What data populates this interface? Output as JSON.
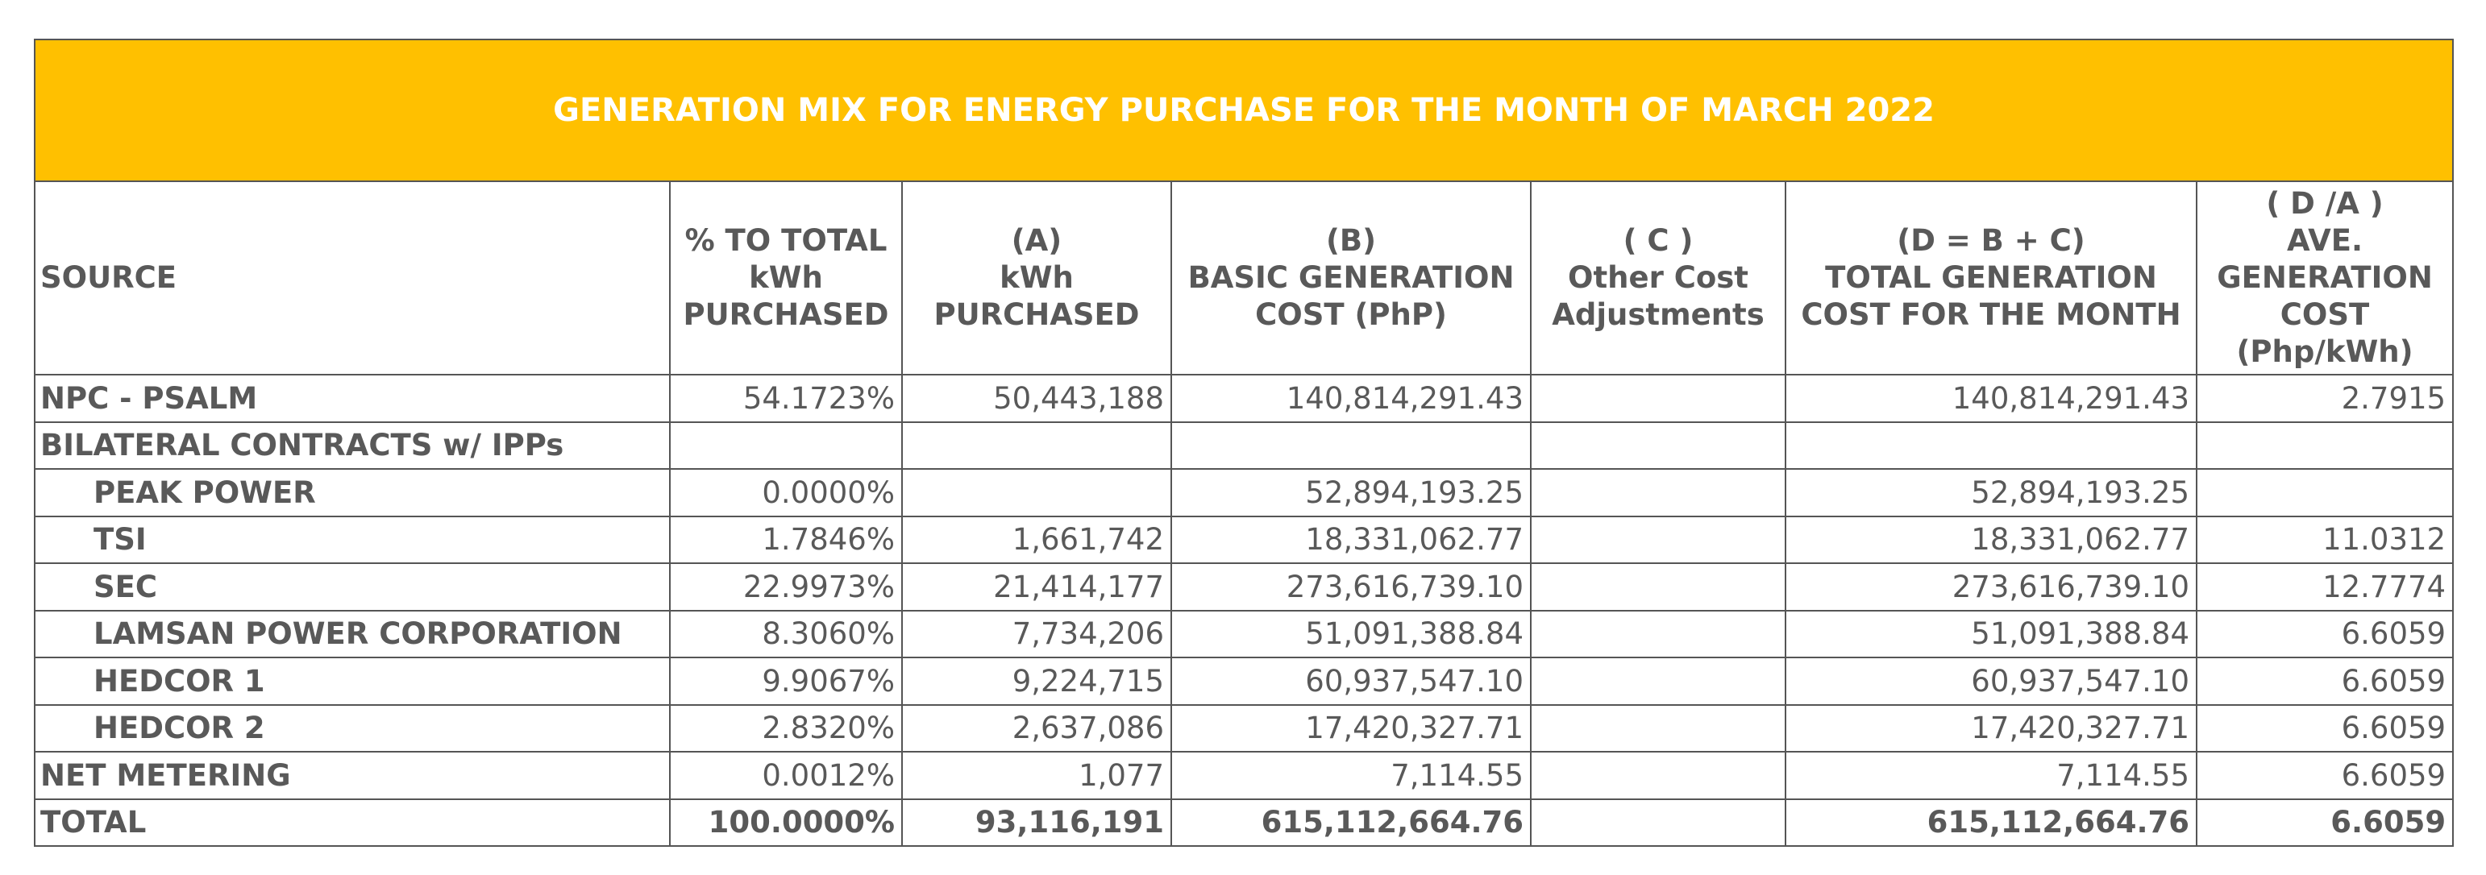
{
  "title": "GENERATION MIX FOR ENERGY PURCHASE FOR THE MONTH OF MARCH 2022",
  "headers": {
    "source": "SOURCE",
    "pct": [
      "% TO TOTAL",
      "kWh",
      "PURCHASED"
    ],
    "kwh": [
      "(A)",
      "kWh",
      "PURCHASED"
    ],
    "basic": [
      "(B)",
      "BASIC GENERATION",
      "COST (PhP)"
    ],
    "other": [
      "( C )",
      "Other Cost",
      "Adjustments"
    ],
    "total": [
      "(D = B + C)",
      "TOTAL GENERATION",
      "COST FOR THE MONTH"
    ],
    "ave": [
      "( D /A )",
      "AVE.",
      "GENERATION",
      "COST",
      "(Php/kWh)"
    ]
  },
  "rows": [
    {
      "source": "NPC - PSALM",
      "indent": false,
      "pct": "54.1723%",
      "kwh": "50,443,188",
      "basic": "140,814,291.43",
      "other": "",
      "total": "140,814,291.43",
      "ave": "2.7915"
    },
    {
      "source": "BILATERAL CONTRACTS w/ IPPs",
      "indent": false,
      "pct": "",
      "kwh": "",
      "basic": "",
      "other": "",
      "total": "",
      "ave": ""
    },
    {
      "source": "PEAK POWER",
      "indent": true,
      "pct": "0.0000%",
      "kwh": "",
      "basic": "52,894,193.25",
      "other": "",
      "total": "52,894,193.25",
      "ave": ""
    },
    {
      "source": "TSI",
      "indent": true,
      "pct": "1.7846%",
      "kwh": "1,661,742",
      "basic": "18,331,062.77",
      "other": "",
      "total": "18,331,062.77",
      "ave": "11.0312"
    },
    {
      "source": "SEC",
      "indent": true,
      "pct": "22.9973%",
      "kwh": "21,414,177",
      "basic": "273,616,739.10",
      "other": "",
      "total": "273,616,739.10",
      "ave": "12.7774"
    },
    {
      "source": "LAMSAN POWER CORPORATION",
      "indent": true,
      "pct": "8.3060%",
      "kwh": "7,734,206",
      "basic": "51,091,388.84",
      "other": "",
      "total": "51,091,388.84",
      "ave": "6.6059"
    },
    {
      "source": "HEDCOR 1",
      "indent": true,
      "pct": "9.9067%",
      "kwh": "9,224,715",
      "basic": "60,937,547.10",
      "other": "",
      "total": "60,937,547.10",
      "ave": "6.6059"
    },
    {
      "source": "HEDCOR 2",
      "indent": true,
      "pct": "2.8320%",
      "kwh": "2,637,086",
      "basic": "17,420,327.71",
      "other": "",
      "total": "17,420,327.71",
      "ave": "6.6059"
    },
    {
      "source": "NET METERING",
      "indent": false,
      "pct": "0.0012%",
      "kwh": "1,077",
      "basic": "7,114.55",
      "other": "",
      "total": "7,114.55",
      "ave": "6.6059"
    }
  ],
  "total": {
    "source": "TOTAL",
    "pct": "100.0000%",
    "kwh": "93,116,191",
    "basic": "615,112,664.76",
    "other": "",
    "total": "615,112,664.76",
    "ave": "6.6059"
  },
  "colors": {
    "title_bg": "#FFC000",
    "title_text": "#ffffff",
    "text": "#595959",
    "border": "#555555"
  }
}
